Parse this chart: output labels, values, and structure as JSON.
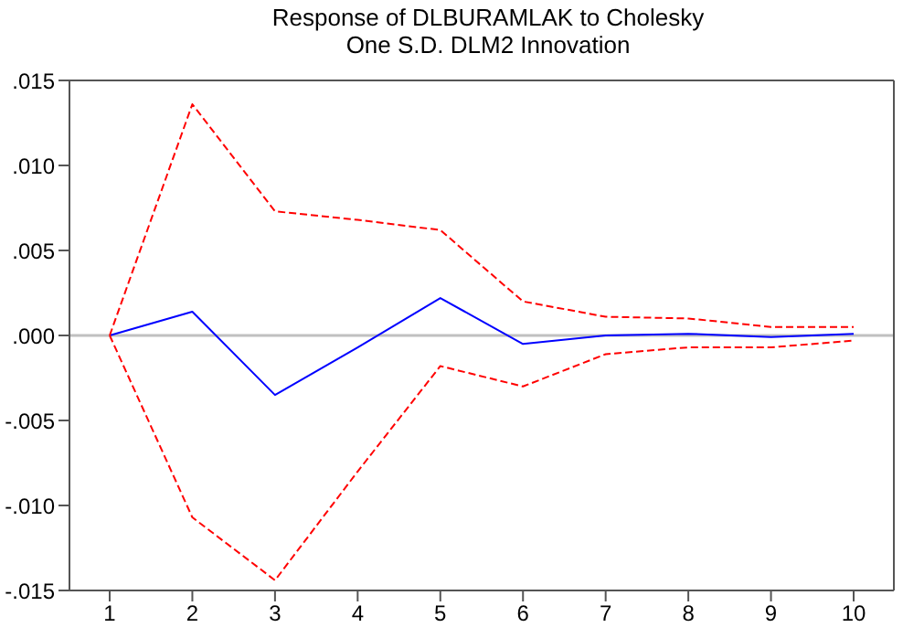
{
  "chart_data": {
    "type": "line",
    "title": "Response of DLBURAMLAK to Cholesky\nOne S.D. DLM2 Innovation",
    "categories": [
      "1",
      "2",
      "3",
      "4",
      "5",
      "6",
      "7",
      "8",
      "9",
      "10"
    ],
    "series": [
      {
        "color": "#0000ff",
        "line_style": "solid",
        "values": [
          0,
          0.0014,
          -0.0035,
          -0.0007,
          0.0022,
          -0.0005,
          0,
          0.0001,
          -0.0001,
          0.0001
        ]
      },
      {
        "color": "#ff0000",
        "line_style": "dashed",
        "values": [
          0,
          0.0136,
          0.0073,
          0.0068,
          0.0062,
          0.002,
          0.0011,
          0.001,
          0.0005,
          0.0005
        ]
      },
      {
        "color": "#ff0000",
        "line_style": "dashed",
        "values": [
          0,
          -0.0107,
          -0.0144,
          -0.008,
          -0.0018,
          -0.003,
          -0.0011,
          -0.0007,
          -0.0007,
          -0.0003
        ]
      }
    ],
    "ylim": [
      -0.015,
      0.015
    ],
    "yticks": [
      {
        "value": -0.015,
        "label": "-.015"
      },
      {
        "value": -0.01,
        "label": "-.010"
      },
      {
        "value": -0.005,
        "label": "-.005"
      },
      {
        "value": 0,
        "label": ".000"
      },
      {
        "value": 0.005,
        "label": ".005"
      },
      {
        "value": 0.01,
        "label": ".010"
      },
      {
        "value": 0.015,
        "label": ".015"
      }
    ],
    "ref_lines": [
      {
        "axis": "y",
        "value": 0,
        "color": "#c0c0c0"
      }
    ],
    "grid": false,
    "legend": false,
    "marker": "none"
  }
}
